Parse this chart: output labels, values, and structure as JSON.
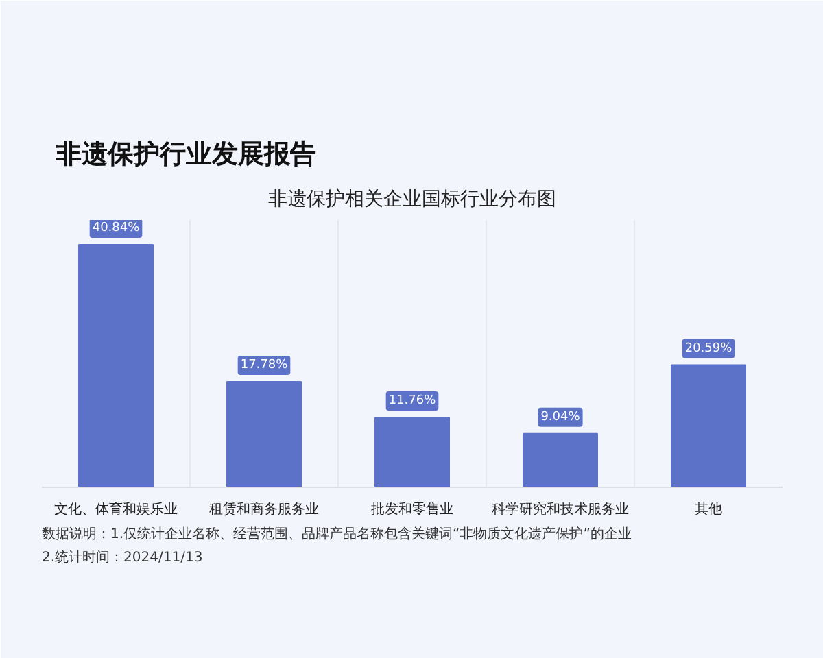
{
  "chart_data": {
    "type": "bar",
    "title": "非遗保护行业发展报告",
    "subtitle": "非遗保护相关企业国标行业分布图",
    "categories": [
      "文化、体育和娱乐业",
      "租赁和商务服务业",
      "批发和零售业",
      "科学研究和技术服务业",
      "其他"
    ],
    "values": [
      40.84,
      17.78,
      11.76,
      9.04,
      20.59
    ],
    "color": "#5b72c8",
    "value_labels": [
      "40.84%",
      "17.78%",
      "11.76%",
      "9.04%",
      "20.59%"
    ],
    "ylim": [
      0,
      45
    ],
    "tick_labels": "x",
    "grid": "x",
    "annotations": [
      "数据说明：1.仅统计企业名称、经营范围、品牌产品名称包含关键词“非物质文化遗产保护”的企业 2.统计时间：2024/11/13"
    ]
  }
}
